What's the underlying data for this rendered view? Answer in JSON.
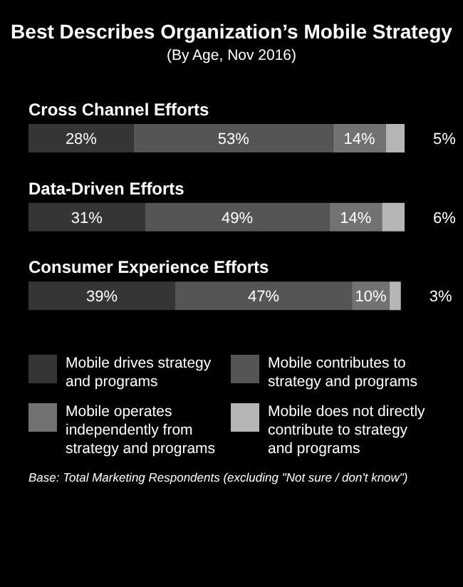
{
  "chart_data": {
    "type": "bar",
    "orientation": "horizontal",
    "stacked": true,
    "title": "Best Describes Organization’s Mobile Strategy",
    "subtitle": "(By Age, Nov 2016)",
    "categories": [
      "Cross Channel Efforts",
      "Data-Driven Efforts",
      "Consumer Experience Efforts"
    ],
    "series": [
      {
        "name": "Mobile drives strategy and programs",
        "color": "#353535",
        "values": [
          28,
          31,
          39
        ],
        "value_labels": [
          "28%",
          "31%",
          "39%"
        ]
      },
      {
        "name": "Mobile contributes to strategy and programs",
        "color": "#555555",
        "values": [
          53,
          49,
          47
        ],
        "value_labels": [
          "53%",
          "49%",
          "47%"
        ]
      },
      {
        "name": "Mobile operates independently from strategy and programs",
        "color": "#727272",
        "values": [
          14,
          14,
          10
        ],
        "value_labels": [
          "14%",
          "14%",
          "10%"
        ]
      },
      {
        "name": "Mobile does not directly contribute to strategy and programs",
        "color": "#b5b5b5",
        "values": [
          5,
          6,
          3
        ],
        "value_labels": [
          "5%",
          "6%",
          "3%"
        ]
      }
    ],
    "legend": "bottom",
    "tick_labels": "y",
    "annotations": [
      "Base: Total Marketing Respondents (excluding \"Not sure / don't know\")"
    ]
  }
}
